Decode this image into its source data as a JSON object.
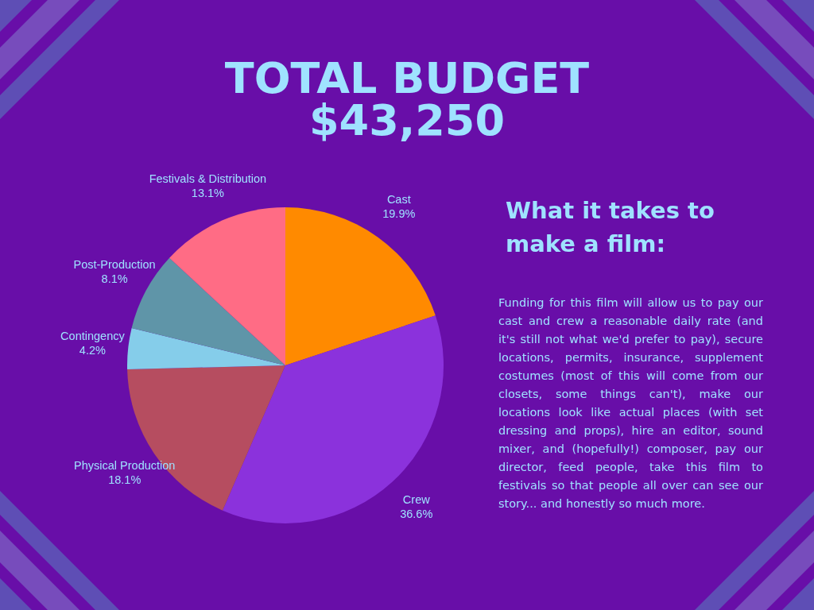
{
  "chart_data": {
    "type": "pie",
    "title": "TOTAL BUDGET",
    "subtitle": "$43,250",
    "categories": [
      "Cast",
      "Crew",
      "Physical Production",
      "Contingency",
      "Post-Production",
      "Festivals & Distribution"
    ],
    "values": [
      19.9,
      36.6,
      18.1,
      4.2,
      8.1,
      13.1
    ],
    "colors": [
      "#ff8a00",
      "#8b32dc",
      "#b64d60",
      "#85cdea",
      "#5f95a8",
      "#ff6c85"
    ],
    "value_labels": [
      "19.9%",
      "36.6%",
      "18.1%",
      "4.2%",
      "8.1%",
      "13.1%"
    ],
    "annotations": [
      "What it takes to make a film:",
      "Funding for this film will allow us to pay our cast and crew a reasonable daily rate (and it's still not what we'd prefer to pay), secure locations, permits, insurance, supplement costumes (most of this will come from our closets, some things can't), make our locations look like actual places (with set dressing and props), hire an editor, sound mixer, and (hopefully!) composer, pay our director, feed people, take this film to festivals so that people all over can see our story... and honestly so much more."
    ]
  }
}
